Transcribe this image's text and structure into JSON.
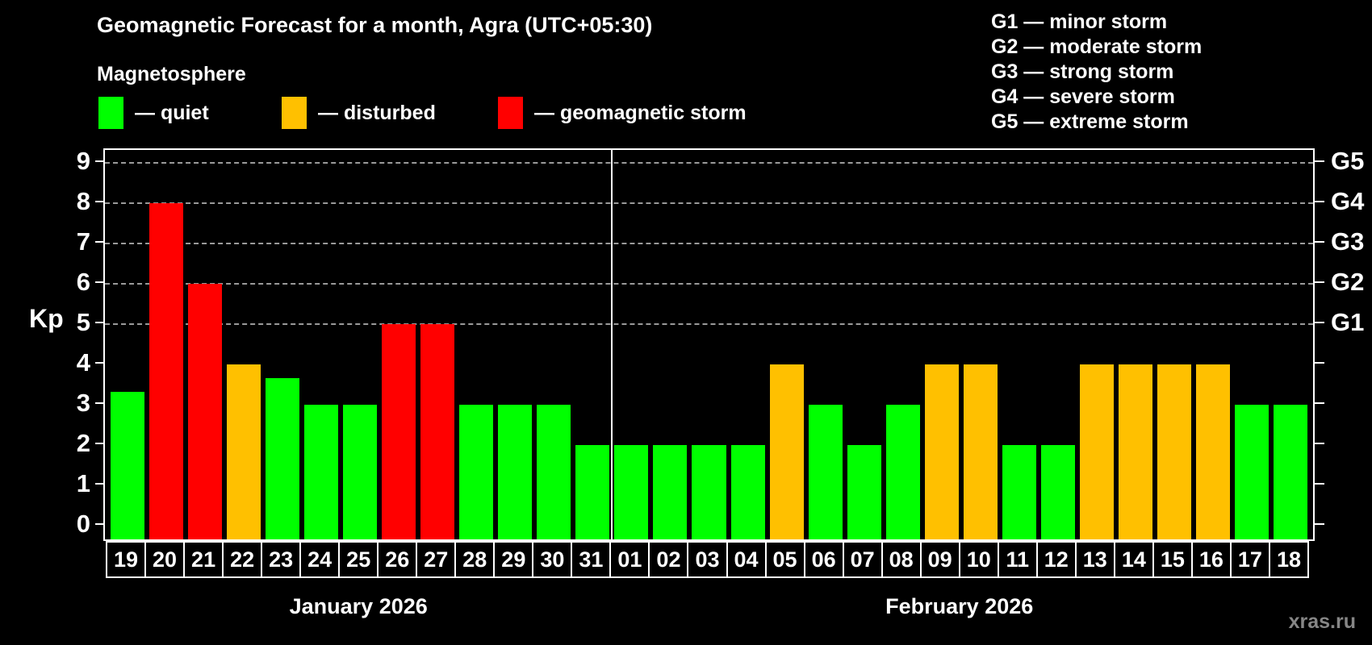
{
  "header": {
    "title": "Geomagnetic Forecast for a month, Agra (UTC+05:30)",
    "subtitle": "Magnetosphere",
    "legend": [
      {
        "label": "— quiet",
        "status": "quiet",
        "color": "#00ff00"
      },
      {
        "label": "— disturbed",
        "status": "disturbed",
        "color": "#ffc000"
      },
      {
        "label": "— geomagnetic storm",
        "status": "storm",
        "color": "#ff0000"
      }
    ],
    "g_scale_legend": [
      "G1 — minor storm",
      "G2 — moderate storm",
      "G3 — strong storm",
      "G4 — severe storm",
      "G5 — extreme storm"
    ]
  },
  "chart_data": {
    "type": "bar",
    "title": "Geomagnetic Forecast for a month, Agra (UTC+05:30)",
    "ylabel": "Kp",
    "ylim": [
      -0.34,
      9.32
    ],
    "y_ticks": [
      0,
      1,
      2,
      3,
      4,
      5,
      6,
      7,
      8,
      9
    ],
    "gridlines_at": [
      5,
      6,
      7,
      8,
      9
    ],
    "grid": "dashed horizontal at G-storm levels only",
    "right_axis_labels": [
      {
        "label": "G1",
        "kp": 5
      },
      {
        "label": "G2",
        "kp": 6
      },
      {
        "label": "G3",
        "kp": 7
      },
      {
        "label": "G4",
        "kp": 8
      },
      {
        "label": "G5",
        "kp": 9
      }
    ],
    "colors": {
      "quiet": "#00ff00",
      "disturbed": "#ffc000",
      "storm": "#ff0000"
    },
    "months": [
      {
        "label": "January 2026",
        "days": 13
      },
      {
        "label": "February 2026",
        "days": 18
      }
    ],
    "points": [
      {
        "day": "19",
        "value": 3.33,
        "status": "quiet"
      },
      {
        "day": "20",
        "value": 8,
        "status": "storm"
      },
      {
        "day": "21",
        "value": 6,
        "status": "storm"
      },
      {
        "day": "22",
        "value": 4,
        "status": "disturbed"
      },
      {
        "day": "23",
        "value": 3.67,
        "status": "quiet"
      },
      {
        "day": "24",
        "value": 3,
        "status": "quiet"
      },
      {
        "day": "25",
        "value": 3,
        "status": "quiet"
      },
      {
        "day": "26",
        "value": 5,
        "status": "storm"
      },
      {
        "day": "27",
        "value": 5,
        "status": "storm"
      },
      {
        "day": "28",
        "value": 3,
        "status": "quiet"
      },
      {
        "day": "29",
        "value": 3,
        "status": "quiet"
      },
      {
        "day": "30",
        "value": 3,
        "status": "quiet"
      },
      {
        "day": "31",
        "value": 2,
        "status": "quiet"
      },
      {
        "day": "01",
        "value": 2,
        "status": "quiet"
      },
      {
        "day": "02",
        "value": 2,
        "status": "quiet"
      },
      {
        "day": "03",
        "value": 2,
        "status": "quiet"
      },
      {
        "day": "04",
        "value": 2,
        "status": "quiet"
      },
      {
        "day": "05",
        "value": 4,
        "status": "disturbed"
      },
      {
        "day": "06",
        "value": 3,
        "status": "quiet"
      },
      {
        "day": "07",
        "value": 2,
        "status": "quiet"
      },
      {
        "day": "08",
        "value": 3,
        "status": "quiet"
      },
      {
        "day": "09",
        "value": 4,
        "status": "disturbed"
      },
      {
        "day": "10",
        "value": 4,
        "status": "disturbed"
      },
      {
        "day": "11",
        "value": 2,
        "status": "quiet"
      },
      {
        "day": "12",
        "value": 2,
        "status": "quiet"
      },
      {
        "day": "13",
        "value": 4,
        "status": "disturbed"
      },
      {
        "day": "14",
        "value": 4,
        "status": "disturbed"
      },
      {
        "day": "15",
        "value": 4,
        "status": "disturbed"
      },
      {
        "day": "16",
        "value": 4,
        "status": "disturbed"
      },
      {
        "day": "17",
        "value": 3,
        "status": "quiet"
      },
      {
        "day": "18",
        "value": 3,
        "status": "quiet"
      }
    ]
  },
  "watermark": "xras.ru"
}
